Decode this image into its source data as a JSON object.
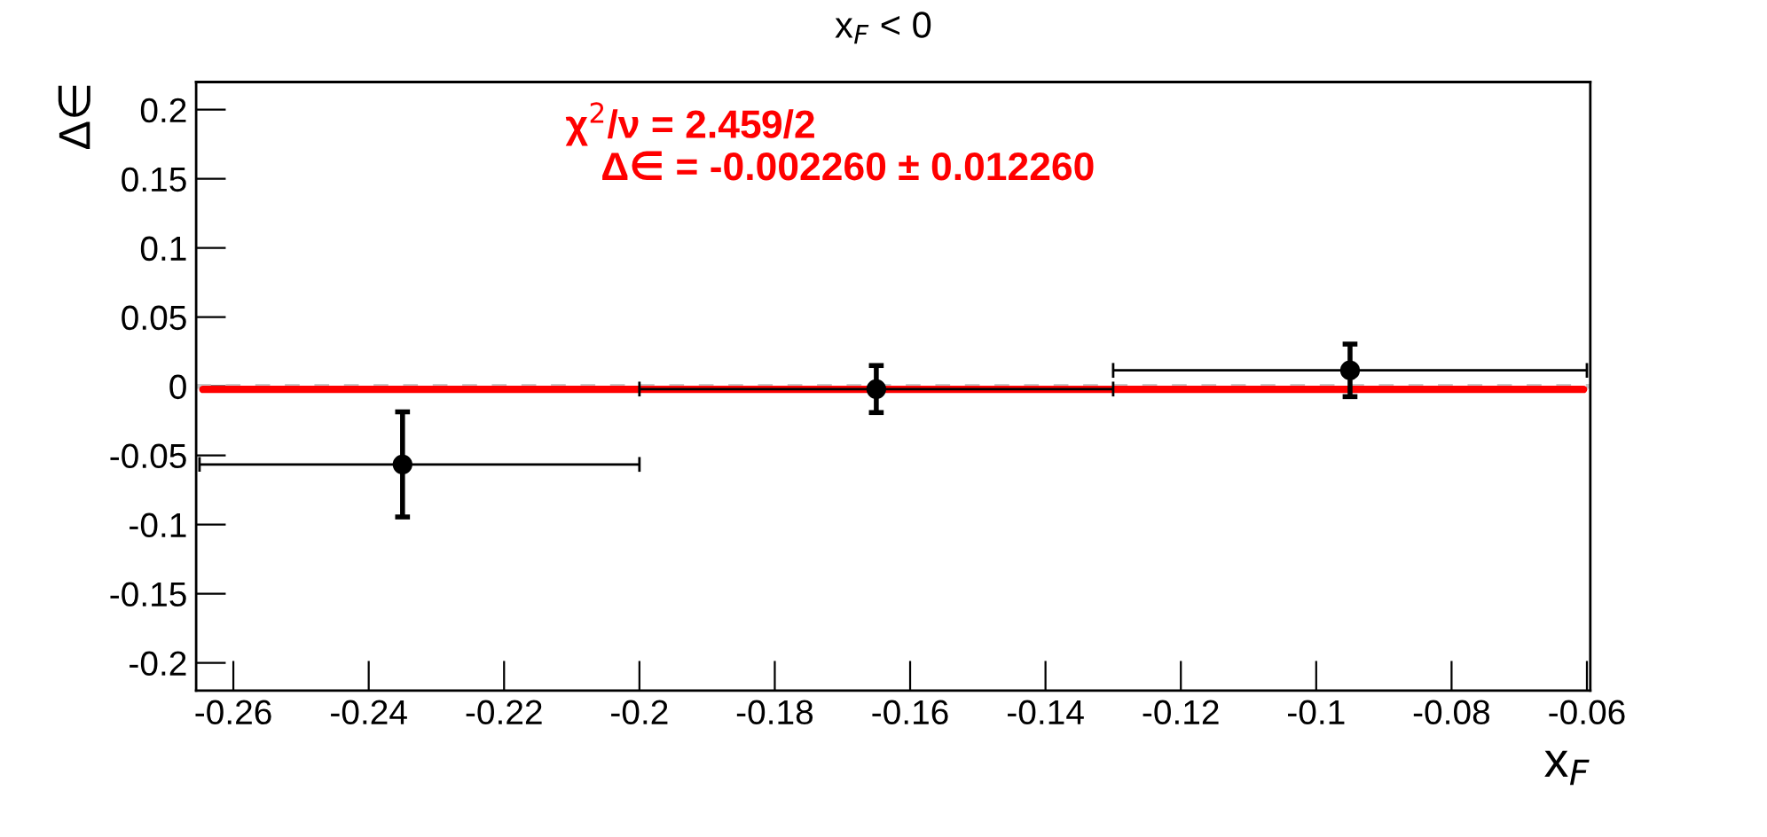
{
  "chart_data": {
    "type": "scatter",
    "title": "x$_{F}$ < 0",
    "xlabel": "x$_{F}$",
    "ylabel": "Δ∈",
    "xlim": [
      -0.2655,
      -0.0595
    ],
    "ylim": [
      -0.22,
      0.22
    ],
    "xticks": [
      -0.26,
      -0.24,
      -0.22,
      -0.2,
      -0.18,
      -0.16,
      -0.14,
      -0.12,
      -0.1,
      -0.08,
      -0.06
    ],
    "yticks": [
      -0.2,
      -0.15,
      -0.1,
      -0.05,
      0,
      0.05,
      0.1,
      0.15,
      0.2
    ],
    "grid": false,
    "legend": false,
    "series": [
      {
        "color": "#000000",
        "marker": "circle",
        "x": [
          -0.235,
          -0.165,
          -0.095
        ],
        "values": [
          -0.0565,
          -0.002,
          0.0115
        ],
        "errors": [
          0.038,
          0.017,
          0.019
        ],
        "xerrors": [
          [
            -0.265,
            -0.2
          ],
          [
            -0.2,
            -0.13
          ],
          [
            -0.13,
            -0.06
          ]
        ]
      },
      {
        "type": "line",
        "color": "#ff0000",
        "x": [
          -0.2645,
          -0.0605
        ],
        "values": [
          -0.00226,
          -0.00226
        ]
      }
    ],
    "ref_lines": [
      {
        "axis": "y",
        "value": 0,
        "color": "#c8c8c8",
        "line_style": "dashed"
      }
    ],
    "annotations": [
      "χ$^{2}$/ν = 2.459/2",
      "Δ∈ = -0.002260 ± 0.012260"
    ]
  }
}
